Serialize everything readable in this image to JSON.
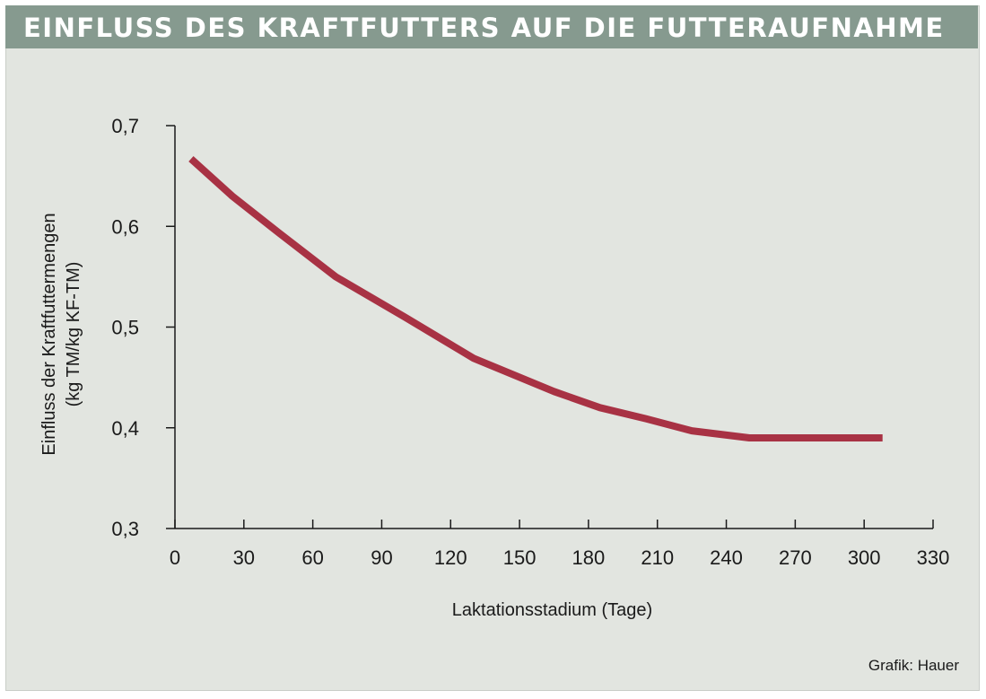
{
  "header": {
    "title": "EINFLUSS DES KRAFTFUTTERS AUF DIE FUTTERAUFNAHME"
  },
  "credit": "Grafik: Hauer",
  "colors": {
    "line": "#a83244",
    "header_bg": "#869a8f",
    "panel_bg": "#e2e5e0"
  },
  "chart_data": {
    "type": "line",
    "title": "EINFLUSS DES KRAFTFUTTERS AUF DIE FUTTERAUFNAHME",
    "xlabel": "Laktationsstadium (Tage)",
    "ylabel_line1": "Einfluss der Kraftfuttermengen",
    "ylabel_line2": "(kg TM/kg KF-TM)",
    "xlim": [
      0,
      330
    ],
    "ylim": [
      0.3,
      0.7
    ],
    "xticks": [
      0,
      30,
      60,
      90,
      120,
      150,
      180,
      210,
      240,
      270,
      300,
      330
    ],
    "xtick_labels": [
      "0",
      "30",
      "60",
      "90",
      "120",
      "150",
      "180",
      "210",
      "240",
      "270",
      "300",
      "330"
    ],
    "yticks": [
      0.3,
      0.4,
      0.5,
      0.6,
      0.7
    ],
    "ytick_labels": [
      "0,3",
      "0,4",
      "0,5",
      "0,6",
      "0,7"
    ],
    "grid": false,
    "series": [
      {
        "x": [
          7,
          25,
          45,
          70,
          100,
          130,
          165,
          185,
          205,
          225,
          250,
          280,
          308
        ],
        "y": [
          0.667,
          0.63,
          0.594,
          0.55,
          0.51,
          0.469,
          0.436,
          0.42,
          0.409,
          0.397,
          0.39,
          0.39,
          0.39
        ]
      }
    ]
  }
}
